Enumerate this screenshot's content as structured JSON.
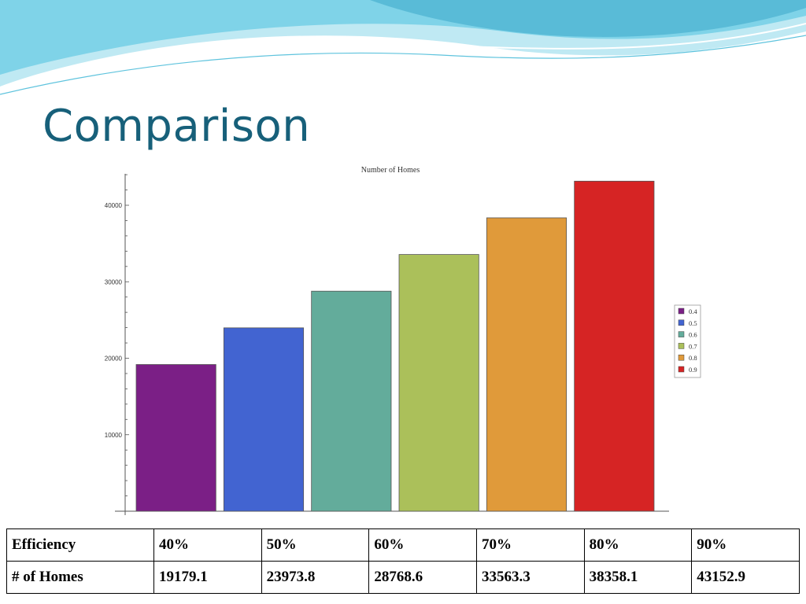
{
  "slide": {
    "title": "Comparison"
  },
  "colors": {
    "title": "#17607a",
    "wave_light": "#bfe9f3",
    "wave_mid": "#7fd3e8",
    "wave_dark": "#3aa7c8"
  },
  "chart_data": {
    "type": "bar",
    "title": "Number of Homes",
    "categories": [
      "0.4",
      "0.5",
      "0.6",
      "0.7",
      "0.8",
      "0.9"
    ],
    "values": [
      19179.1,
      23973.8,
      28768.6,
      33563.3,
      38358.1,
      43152.9
    ],
    "colors": [
      "#7b1f86",
      "#4264d1",
      "#63ac9b",
      "#abc05a",
      "#e09a3a",
      "#d62424"
    ],
    "ylim": [
      0,
      45000
    ],
    "yticks": [
      10000,
      20000,
      30000,
      40000
    ],
    "ytick_labels": [
      "10000",
      "20000",
      "30000",
      "40000"
    ],
    "xlabel": "",
    "ylabel": "",
    "legend": {
      "placement": "right",
      "entries": [
        "0.4",
        "0.5",
        "0.6",
        "0.7",
        "0.8",
        "0.9"
      ]
    },
    "grid": false
  },
  "table": {
    "rows": [
      [
        "Efficiency",
        "40%",
        "50%",
        "60%",
        "70%",
        "80%",
        "90%"
      ],
      [
        "# of Homes",
        "19179.1",
        "23973.8",
        "28768.6",
        "33563.3",
        "38358.1",
        "43152.9"
      ]
    ]
  }
}
